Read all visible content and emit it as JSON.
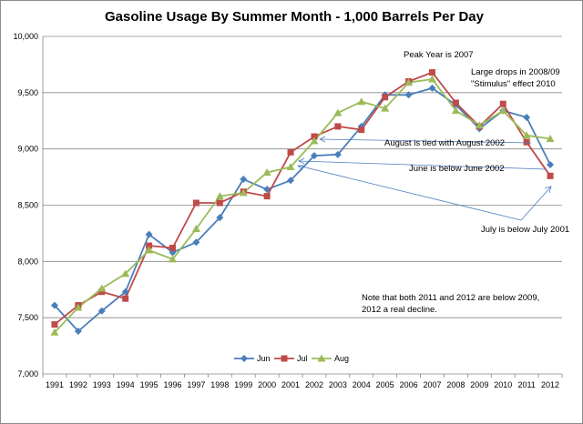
{
  "chart_data": {
    "type": "line",
    "title": "Gasoline Usage By Summer Month  - 1,000 Barrels Per Day",
    "xlabel": "",
    "ylabel": "",
    "x": [
      1991,
      1992,
      1993,
      1994,
      1995,
      1996,
      1997,
      1998,
      1999,
      2000,
      2001,
      2002,
      2003,
      2004,
      2005,
      2006,
      2007,
      2008,
      2009,
      2010,
      2011,
      2012
    ],
    "x_tick_labels": [
      "1991",
      "1992",
      "1993",
      "1994",
      "1995",
      "1996",
      "1997",
      "1998",
      "1999",
      "2000",
      "2001",
      "2002",
      "2003",
      "2004",
      "2005",
      "2006",
      "2007",
      "2008",
      "2009",
      "2010",
      "2011",
      "2012"
    ],
    "ylim": [
      7000,
      10000
    ],
    "y_ticks": [
      7000,
      7500,
      8000,
      8500,
      9000,
      9500,
      10000
    ],
    "y_tick_labels": [
      "7,000",
      "7,500",
      "8,000",
      "8,500",
      "9,000",
      "9,500",
      "10,000"
    ],
    "grid": true,
    "legend_position": "bottom",
    "series": [
      {
        "name": "Jun",
        "color": "#4a7ebb",
        "marker": "diamond",
        "values": [
          7610,
          7380,
          7560,
          7730,
          8240,
          8080,
          8170,
          8390,
          8730,
          8640,
          8720,
          8940,
          8950,
          9200,
          9480,
          9480,
          9540,
          9390,
          9180,
          9340,
          9280,
          8860
        ]
      },
      {
        "name": "Jul",
        "color": "#be4b48",
        "marker": "square",
        "values": [
          7440,
          7610,
          7730,
          7670,
          8140,
          8120,
          8520,
          8520,
          8620,
          8580,
          8970,
          9110,
          9200,
          9170,
          9460,
          9600,
          9680,
          9410,
          9200,
          9400,
          9060,
          8760
        ]
      },
      {
        "name": "Aug",
        "color": "#9bbb59",
        "marker": "triangle",
        "values": [
          7370,
          7590,
          7760,
          7890,
          8100,
          8020,
          8290,
          8580,
          8610,
          8790,
          8840,
          9070,
          9320,
          9420,
          9360,
          9590,
          9620,
          9340,
          9210,
          9340,
          9120,
          9090
        ]
      }
    ],
    "annotations": [
      "Peak Year is 2007",
      "Large drops  in 2008/09",
      "\"Stimulus\"  effect 2010",
      "August is tied with August 2002",
      "June is below June 2002",
      "July is below July 2001",
      "Note that both 2011 and 2012 are below 2009,",
      "2012 a real decline."
    ]
  }
}
